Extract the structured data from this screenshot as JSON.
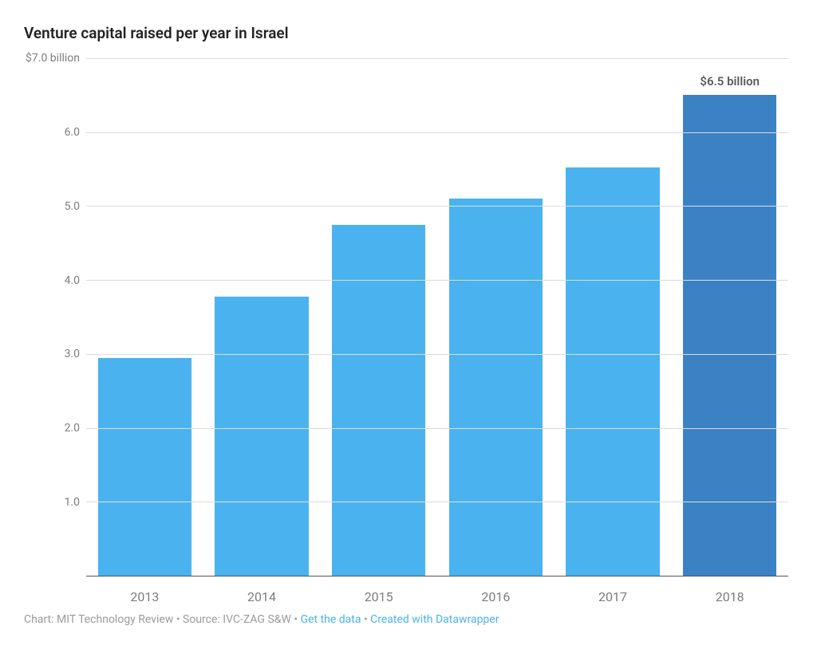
{
  "chart": {
    "type": "bar",
    "title": "Venture capital raised per year in Israel",
    "categories": [
      "2013",
      "2014",
      "2015",
      "2016",
      "2017",
      "2018"
    ],
    "values": [
      2.95,
      3.78,
      4.75,
      5.1,
      5.52,
      6.5
    ],
    "bar_colors": [
      "#4ab3ef",
      "#4ab3ef",
      "#4ab3ef",
      "#4ab3ef",
      "#4ab3ef",
      "#3b82c4"
    ],
    "bar_width_pct": 80,
    "highlight_index": 5,
    "highlight_label": "$6.5 billion",
    "ylim": [
      0,
      7
    ],
    "ytick_step": 1,
    "ytick_labels": [
      "1.0",
      "2.0",
      "3.0",
      "4.0",
      "5.0",
      "6.0",
      "$7.0 billion"
    ],
    "grid_color": "#dcdcdc",
    "axis_color": "#555555",
    "background_color": "#ffffff",
    "title_fontsize_pt": 19,
    "title_color": "#222222",
    "axis_label_fontsize_pt": 14,
    "axis_label_color": "#7d7d7d",
    "bar_label_fontsize_pt": 15,
    "bar_label_color": "#5a5a5a"
  },
  "footer": {
    "prefix": "Chart: MIT Technology Review • Source: IVC-ZAG S&W • ",
    "link1": "Get the data",
    "sep": " • ",
    "link2": "Created with Datawrapper",
    "text_color": "#9a9a9a",
    "link_color": "#4ab3ef",
    "fontsize_pt": 14
  }
}
